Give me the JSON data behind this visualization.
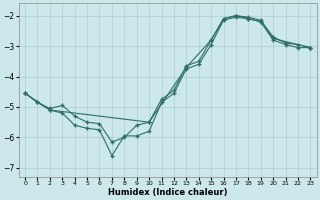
{
  "xlabel": "Humidex (Indice chaleur)",
  "xlim": [
    -0.5,
    23.5
  ],
  "ylim": [
    -7.3,
    -1.6
  ],
  "bg_color": "#cce8ea",
  "grid_color": "#aacfd4",
  "line_color": "#2e6e6a",
  "line1_x": [
    0,
    1,
    2,
    3,
    4,
    5,
    6,
    7,
    8,
    9,
    10,
    11,
    12,
    13,
    14,
    15,
    16,
    17,
    18,
    19,
    20,
    21,
    22,
    23
  ],
  "line1_y": [
    -4.55,
    -4.85,
    -5.1,
    -5.2,
    -5.6,
    -5.7,
    -5.75,
    -6.6,
    -5.95,
    -5.95,
    -5.8,
    -4.85,
    -4.55,
    -3.75,
    -3.6,
    -2.95,
    -2.15,
    -2.05,
    -2.1,
    -2.2,
    -2.8,
    -2.95,
    -3.05,
    -3.05
  ],
  "line2_x": [
    0,
    1,
    2,
    3,
    4,
    5,
    6,
    7,
    8,
    9,
    10,
    11,
    12,
    13,
    14,
    15,
    16,
    17,
    18,
    19,
    20,
    21,
    22,
    23
  ],
  "line2_y": [
    -4.55,
    -4.85,
    -5.05,
    -4.95,
    -5.3,
    -5.5,
    -5.55,
    -6.15,
    -6.0,
    -5.6,
    -5.5,
    -4.75,
    -4.45,
    -3.65,
    -3.5,
    -2.8,
    -2.1,
    -2.0,
    -2.05,
    -2.15,
    -2.7,
    -2.9,
    -2.95,
    -3.05
  ],
  "line3_x": [
    0,
    2,
    10,
    13,
    15,
    16,
    17,
    18,
    19,
    20,
    23
  ],
  "line3_y": [
    -4.55,
    -5.1,
    -5.5,
    -3.7,
    -2.8,
    -2.1,
    -2.0,
    -2.1,
    -2.2,
    -2.75,
    -3.05
  ],
  "xticks": [
    0,
    1,
    2,
    3,
    4,
    5,
    6,
    7,
    8,
    9,
    10,
    11,
    12,
    13,
    14,
    15,
    16,
    17,
    18,
    19,
    20,
    21,
    22,
    23
  ],
  "yticks": [
    -7,
    -6,
    -5,
    -4,
    -3,
    -2
  ]
}
